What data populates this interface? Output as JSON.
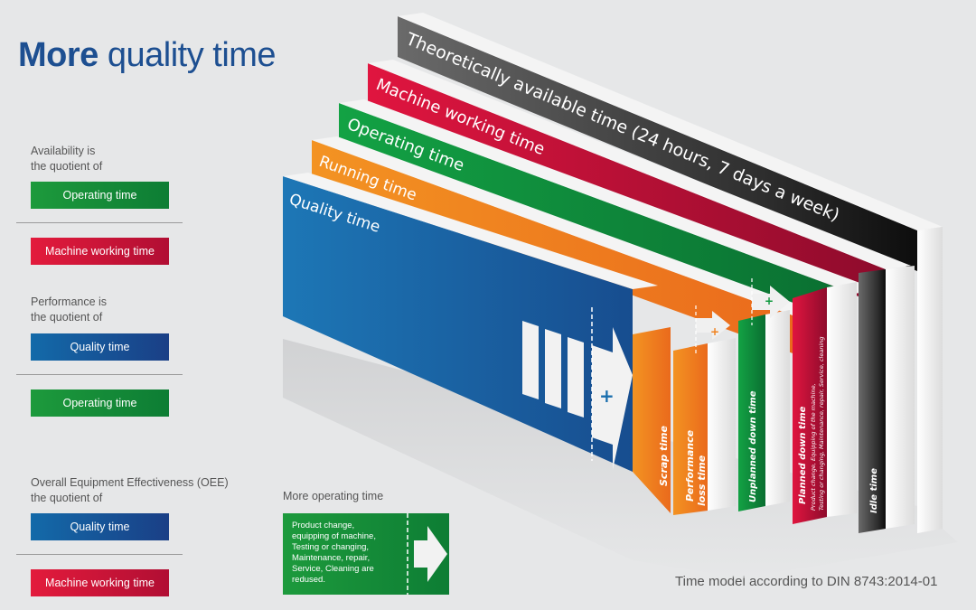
{
  "title": {
    "bold": "More",
    "rest": "quality time"
  },
  "availability": {
    "label_line1": "Availability is",
    "label_line2": "the quotient of",
    "numerator": "Operating time",
    "denominator": "Machine working time"
  },
  "performance": {
    "label_line1": "Performance is",
    "label_line2": "the quotient of",
    "numerator": "Quality time",
    "denominator": "Operating time"
  },
  "oee": {
    "label_line1": "Overall Equipment Effectiveness (OEE)",
    "label_line2": "the quotient of",
    "numerator": "Quality time",
    "denominator": "Machine working time"
  },
  "note": {
    "title": "More operating time",
    "lines": [
      "Product change,",
      "equipping of machine,",
      "Testing or changing,",
      "Maintenance, repair,",
      "Service, Cleaning are",
      "redused."
    ]
  },
  "footer": "Time model according to DIN 8743:2014-01",
  "bands": {
    "theoretical": "Theoretically available time (24 hours, 7 days a week)",
    "machine": "Machine working time",
    "operating": "Operating time",
    "running": "Running time",
    "quality": "Quality time"
  },
  "losses": {
    "scrap": "Scrap time",
    "performance_1": "Performance",
    "performance_2": "loss time",
    "unplanned": "Unplanned down time",
    "planned": "Planned down time",
    "planned_sub_1": "Product change, Equipping of the machine,",
    "planned_sub_2": "Testing or changing, Maintenance, repair, Service, cleaning",
    "idle": "Idle time"
  },
  "colors": {
    "theoretical": "#5a5a5a",
    "machine": "#d2103a",
    "operating": "#0f9a3f",
    "running": "#f0821e",
    "quality": "#1a6fae",
    "title": "#1d4f91"
  }
}
